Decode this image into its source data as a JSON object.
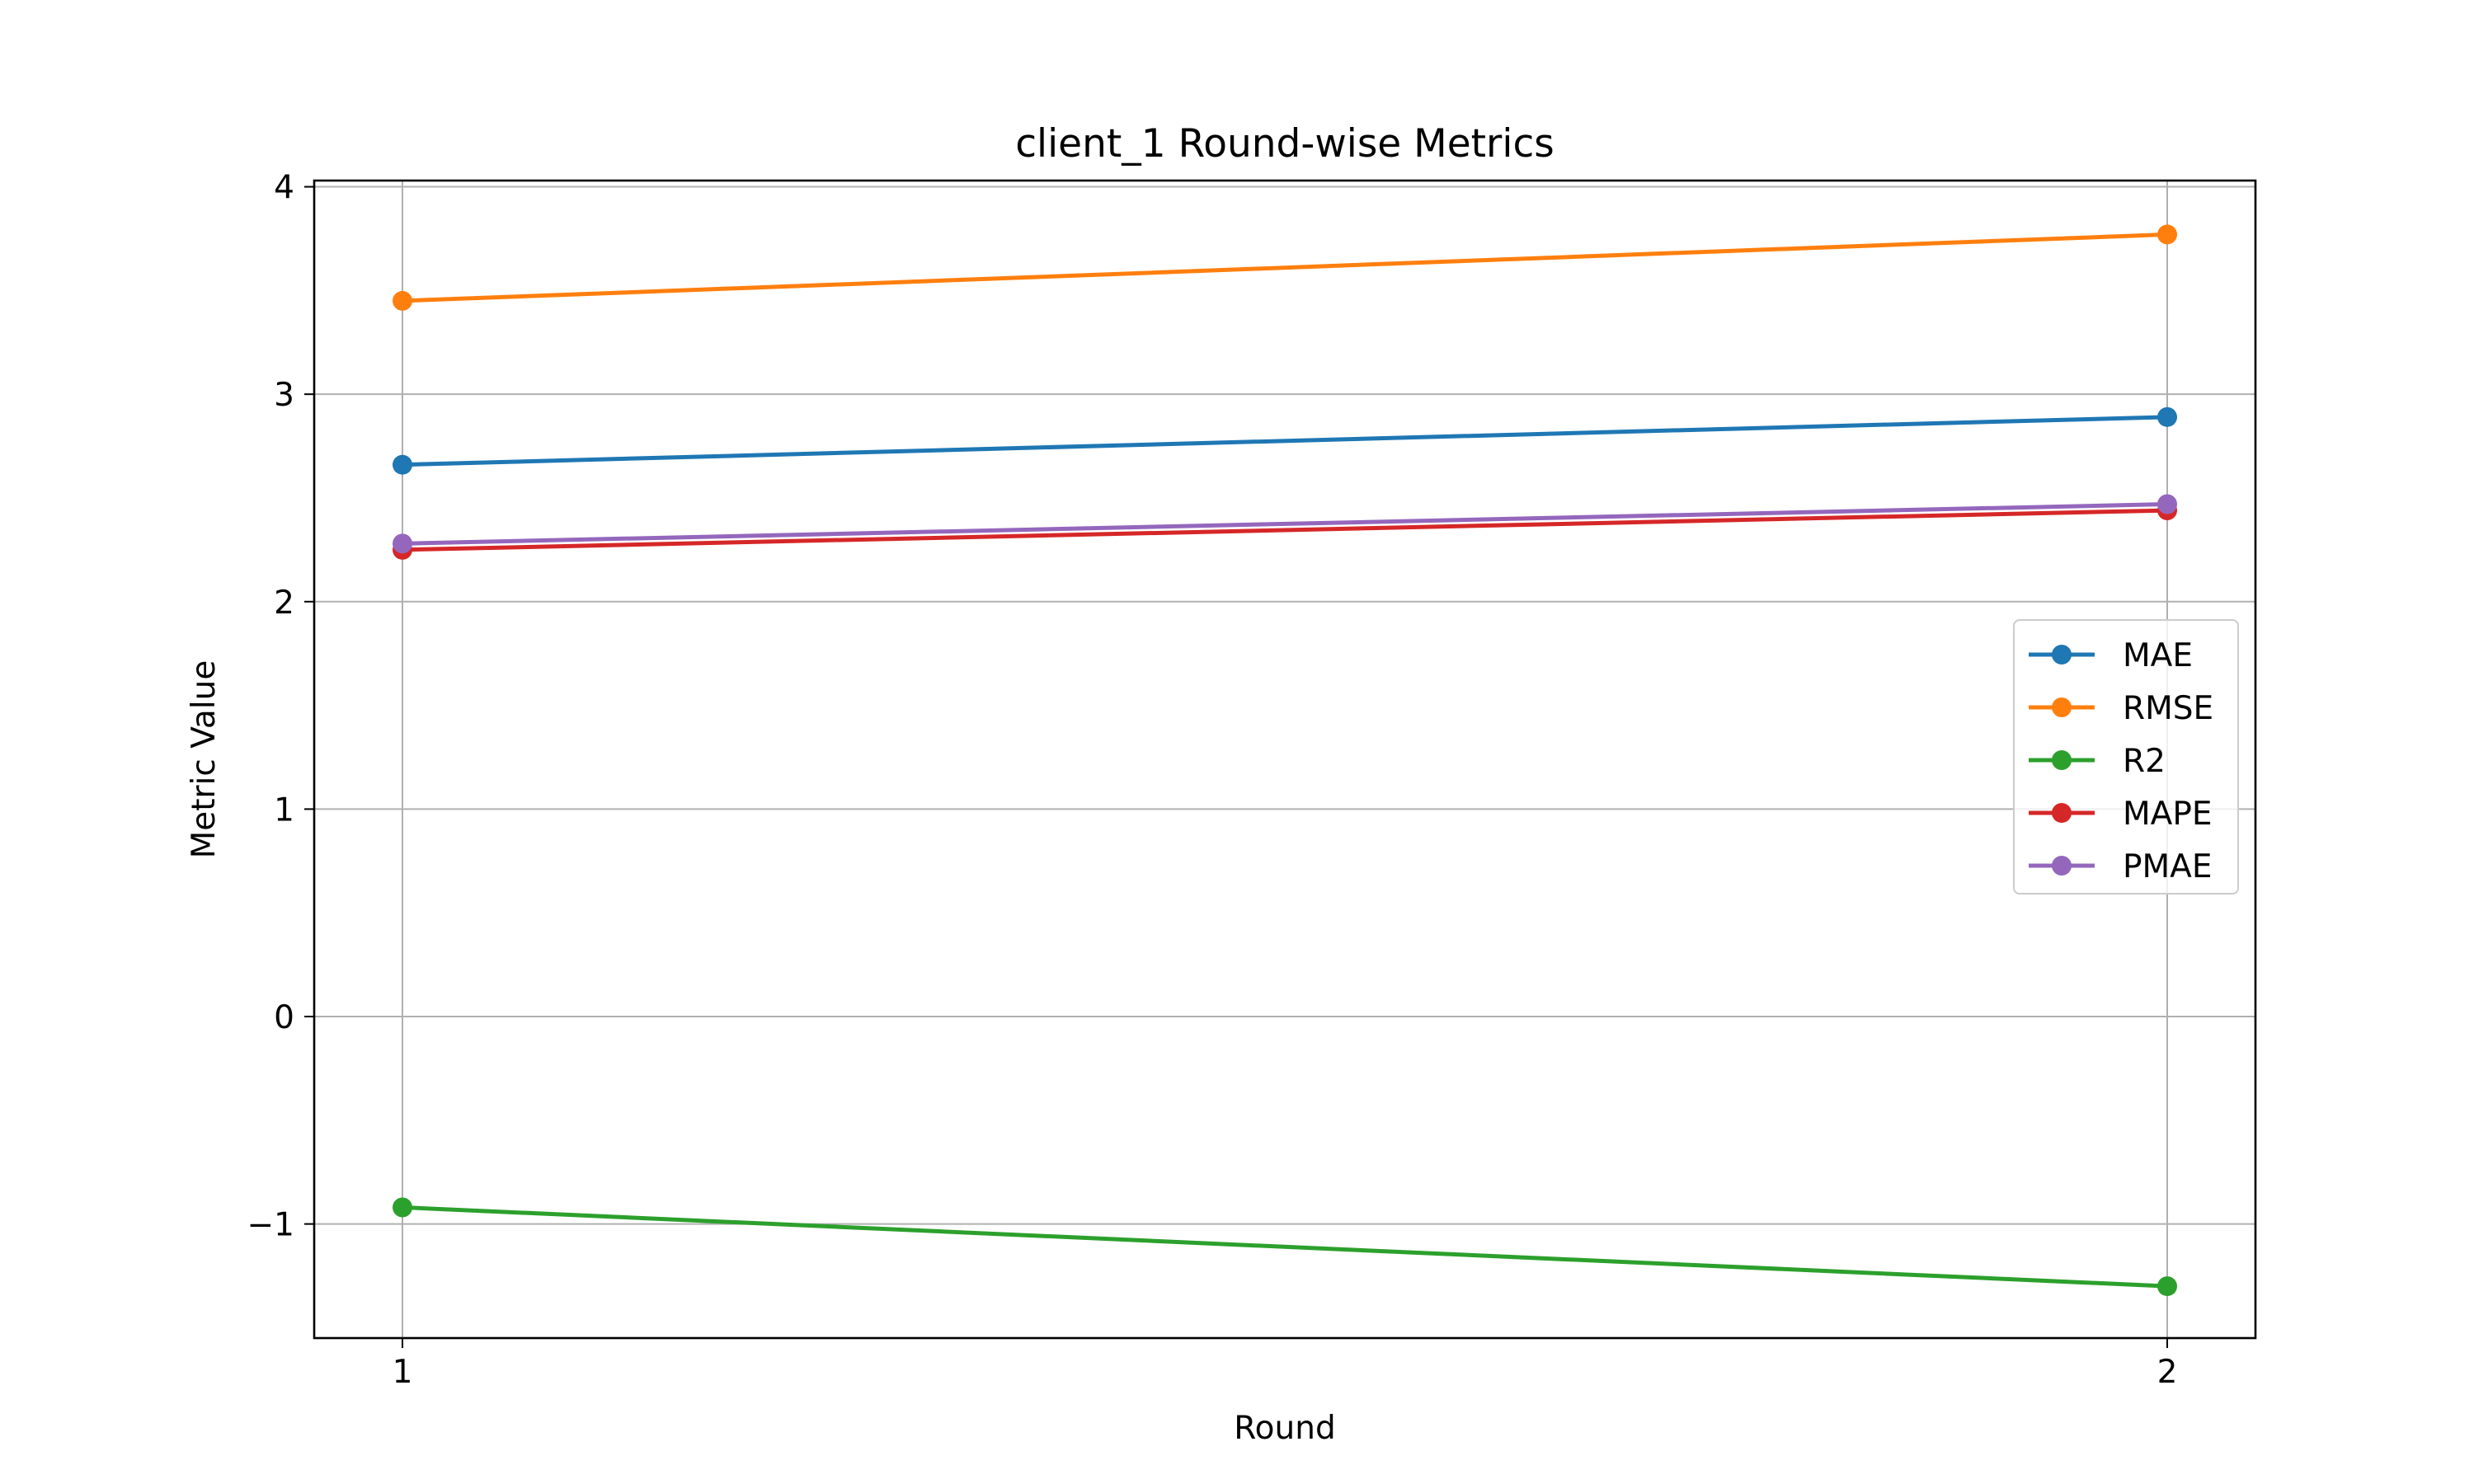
{
  "chart_data": {
    "type": "line",
    "title": "client_1 Round-wise Metrics",
    "xlabel": "Round",
    "ylabel": "Metric Value",
    "x": [
      1,
      2
    ],
    "x_tick_labels": [
      "1",
      "2"
    ],
    "xlim": [
      0.95,
      2.05
    ],
    "ylim": [
      -1.55,
      4.03
    ],
    "y_ticks": [
      -1,
      0,
      1,
      2,
      3,
      4
    ],
    "y_tick_labels": [
      "−1",
      "0",
      "1",
      "2",
      "3",
      "4"
    ],
    "grid": true,
    "legend_position": "center-right",
    "series": [
      {
        "name": "MAE",
        "color": "#1f77b4",
        "values": [
          2.66,
          2.89
        ]
      },
      {
        "name": "RMSE",
        "color": "#ff7f0e",
        "values": [
          3.45,
          3.77
        ]
      },
      {
        "name": "R2",
        "color": "#2ca02c",
        "values": [
          -0.92,
          -1.3
        ]
      },
      {
        "name": "MAPE",
        "color": "#d62728",
        "values": [
          2.25,
          2.44
        ]
      },
      {
        "name": "PMAE",
        "color": "#9467bd",
        "values": [
          2.28,
          2.47
        ]
      }
    ]
  }
}
